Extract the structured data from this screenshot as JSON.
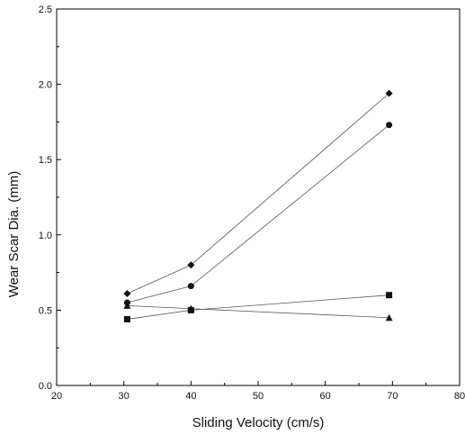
{
  "chart_data": {
    "type": "scatter",
    "title": "",
    "xlabel": "Sliding Velocity (cm/s)",
    "ylabel": "Wear Scar Dia. (mm)",
    "xlim": [
      20,
      80
    ],
    "ylim": [
      0.0,
      2.5
    ],
    "xticks": [
      "20",
      "30",
      "40",
      "50",
      "60",
      "70",
      "80"
    ],
    "yticks": [
      "0.0",
      "0.5",
      "1.0",
      "1.5",
      "2.0",
      "2.5"
    ],
    "grid": false,
    "legend": "none",
    "series": [
      {
        "marker": "diamond",
        "x": [
          30.5,
          40,
          69.5
        ],
        "y": [
          0.61,
          0.8,
          1.94
        ]
      },
      {
        "marker": "circle",
        "x": [
          30.5,
          40,
          69.5
        ],
        "y": [
          0.55,
          0.66,
          1.73
        ]
      },
      {
        "marker": "square",
        "x": [
          30.5,
          40,
          69.5
        ],
        "y": [
          0.44,
          0.5,
          0.6
        ]
      },
      {
        "marker": "triangle",
        "x": [
          30.5,
          40,
          69.5
        ],
        "y": [
          0.53,
          0.51,
          0.45
        ]
      }
    ],
    "colors": {
      "marker": "#111111",
      "line": "#555555",
      "axis": "#000000"
    }
  }
}
